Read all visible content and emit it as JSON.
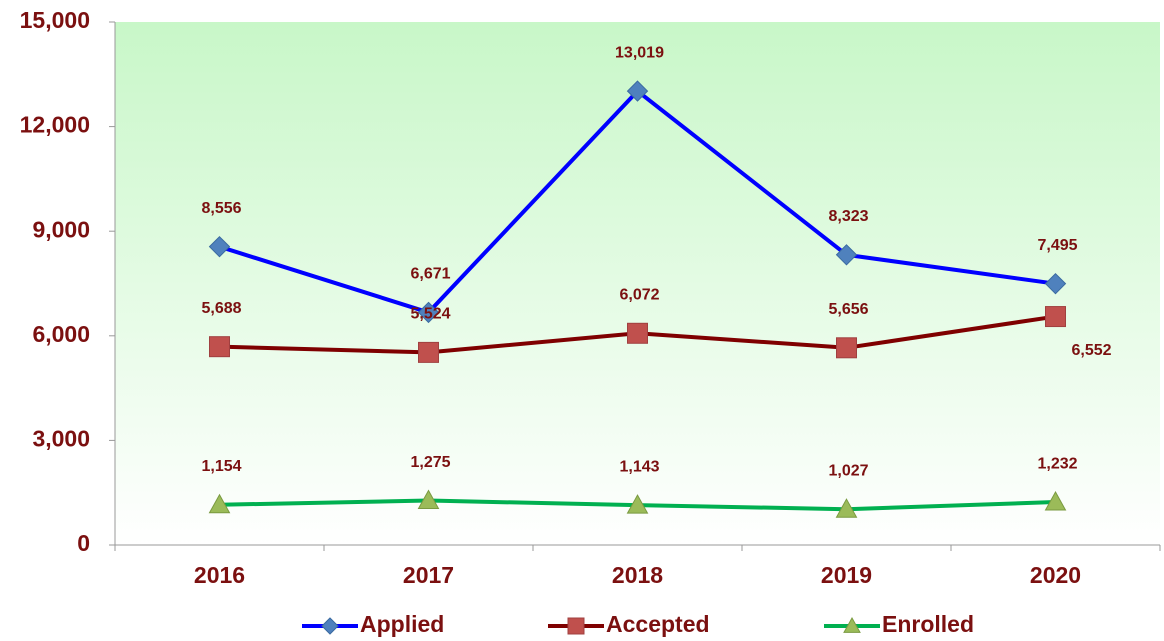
{
  "chart_data": {
    "type": "line",
    "categories": [
      "2016",
      "2017",
      "2018",
      "2019",
      "2020"
    ],
    "series": [
      {
        "name": "Applied",
        "color": "#0000ff",
        "marker_color": "#4f81bd",
        "marker": "diamond",
        "values": [
          8556,
          6671,
          13019,
          8323,
          7495
        ],
        "value_labels": [
          "8,556",
          "6,671",
          "13,019",
          "8,323",
          "7,495"
        ]
      },
      {
        "name": "Accepted",
        "color": "#7f0000",
        "marker_color": "#c0504d",
        "marker": "square",
        "values": [
          5688,
          5524,
          6072,
          5656,
          6552
        ],
        "value_labels": [
          "5,688",
          "5,524",
          "6,072",
          "5,656",
          "6,552"
        ]
      },
      {
        "name": "Enrolled",
        "color": "#00b050",
        "marker_color": "#9bbb59",
        "marker": "triangle",
        "values": [
          1154,
          1275,
          1143,
          1027,
          1232
        ],
        "value_labels": [
          "1,154",
          "1,275",
          "1,143",
          "1,027",
          "1,232"
        ]
      }
    ],
    "ylim": [
      0,
      15000
    ],
    "yticks": [
      0,
      {
        "value": 3000,
        "label": "3,000"
      },
      {
        "value": 6000,
        "label": "6,000"
      },
      {
        "value": 9000,
        "label": "9,000"
      },
      {
        "value": 12000,
        "label": "12,000"
      },
      {
        "value": 15000,
        "label": "15,000"
      }
    ],
    "legend": "bottom"
  }
}
